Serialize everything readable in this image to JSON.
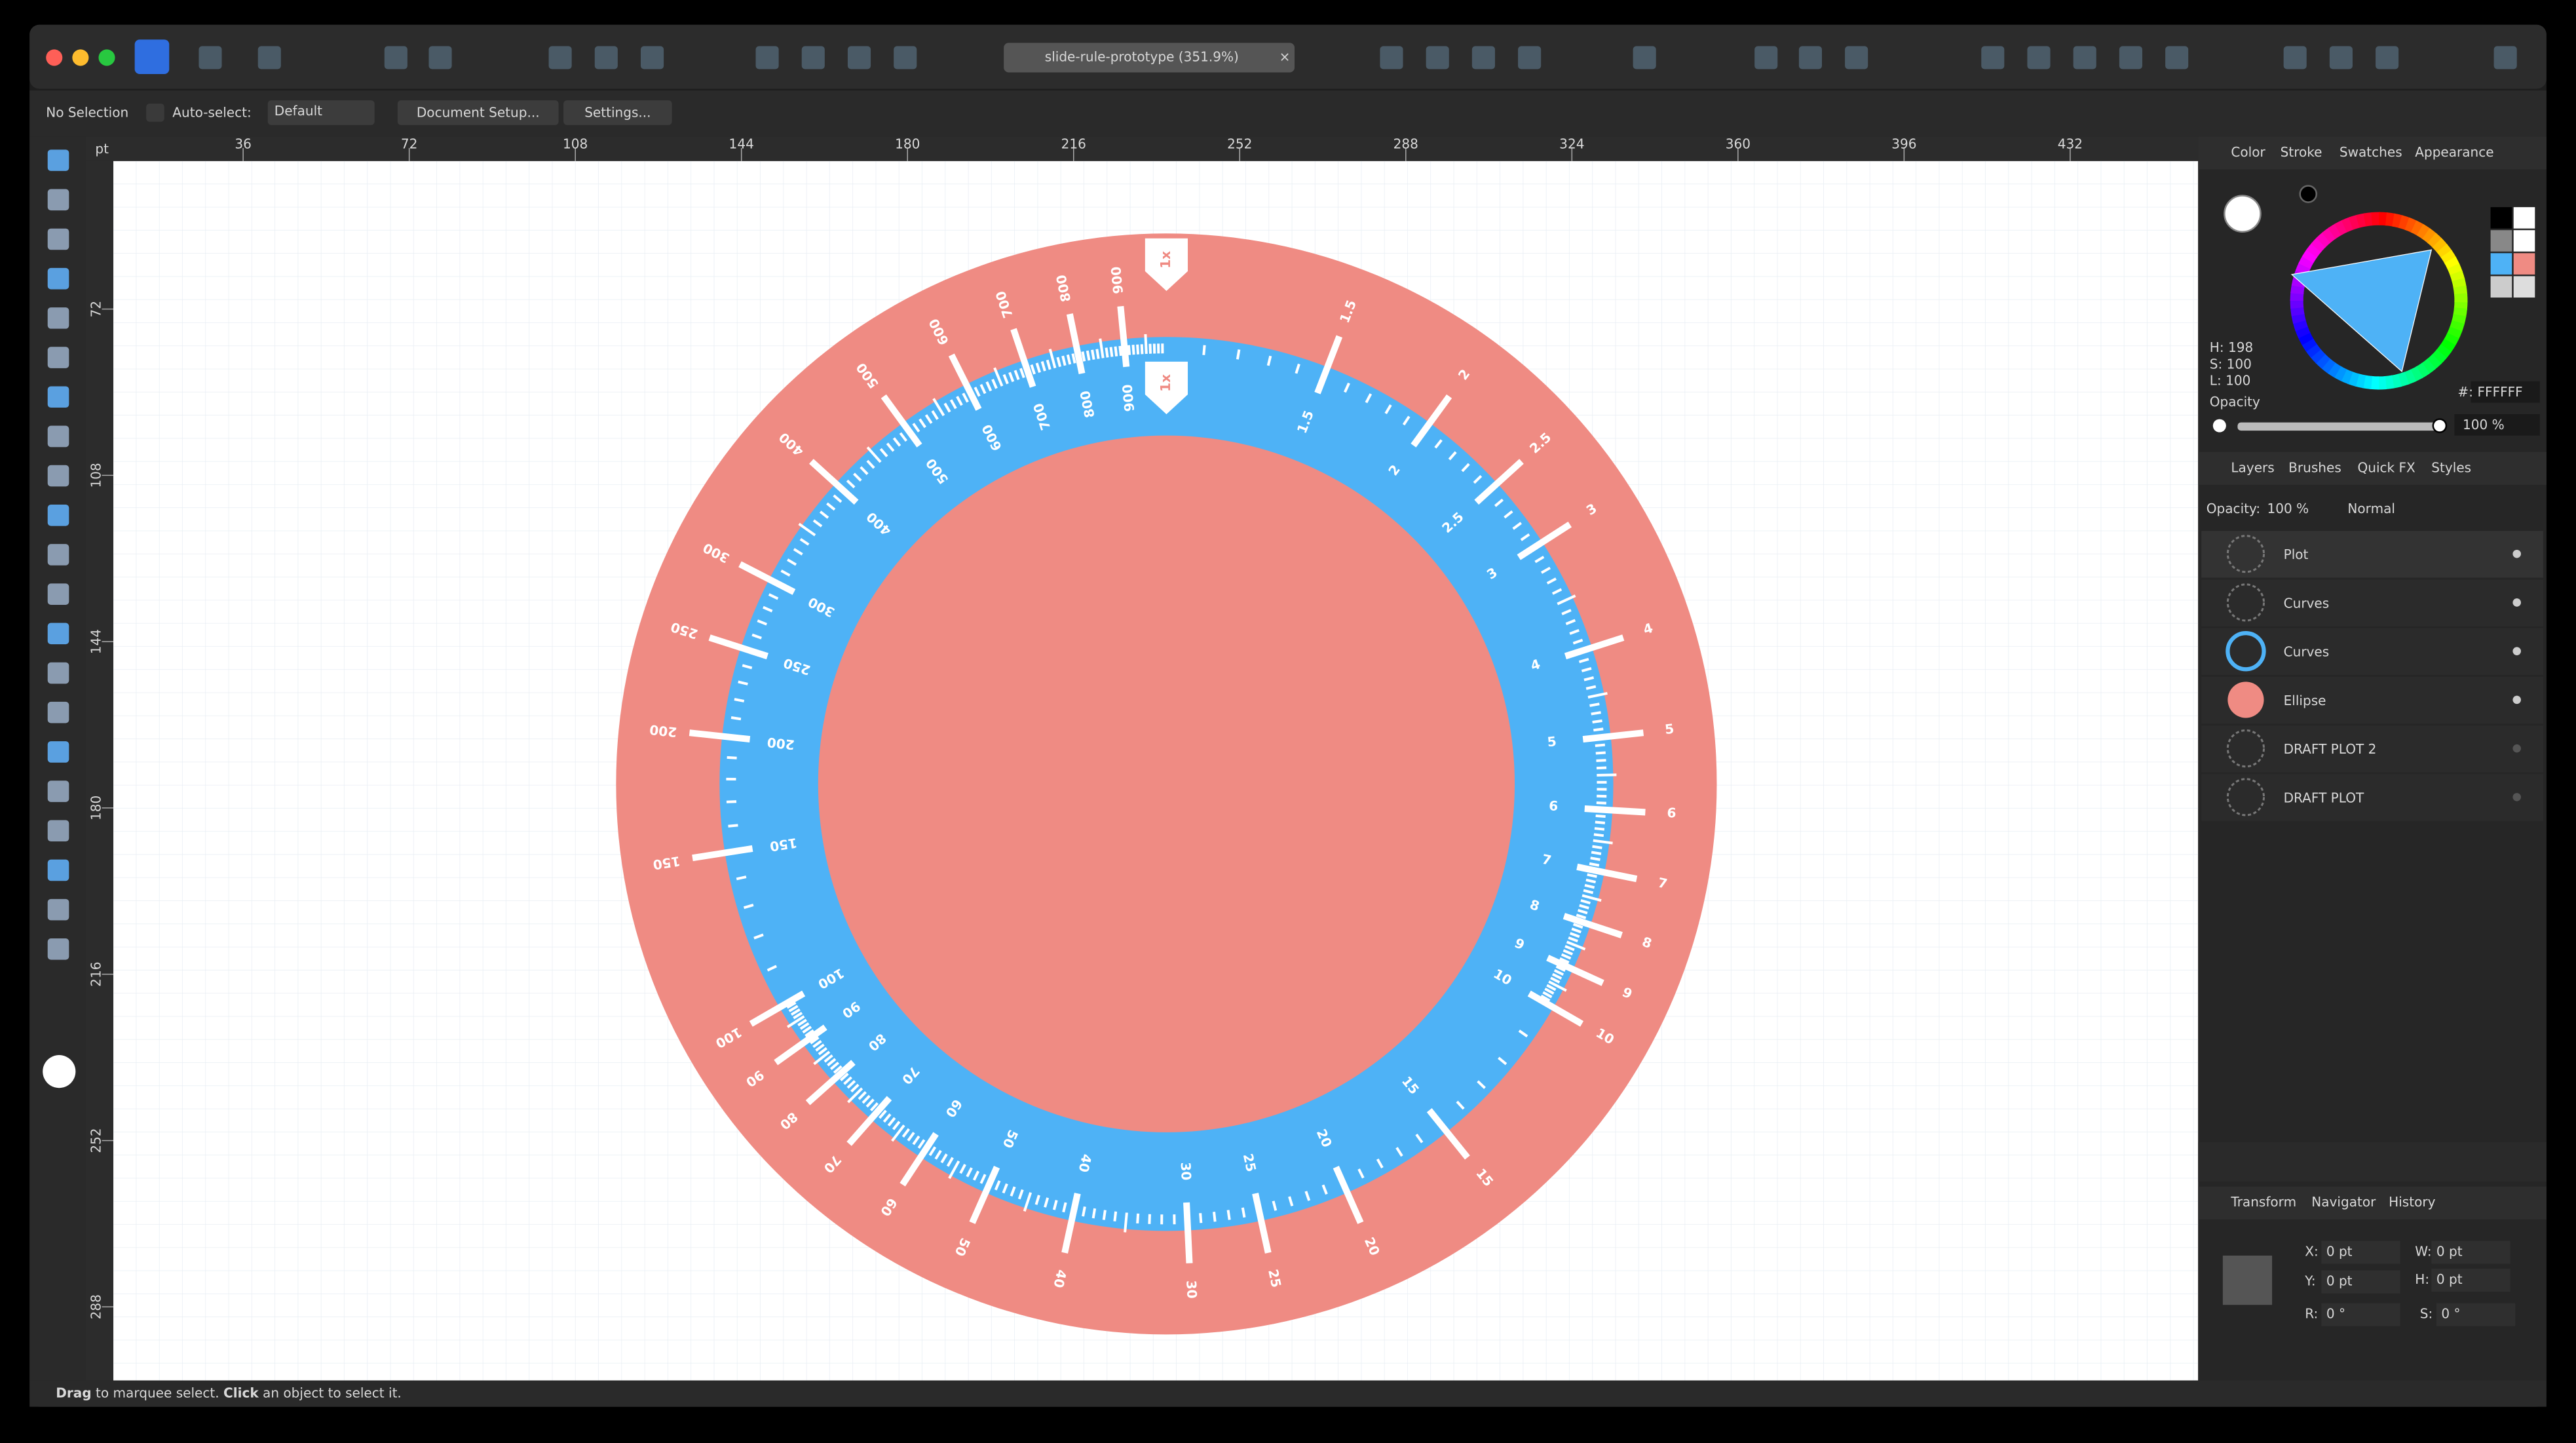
{
  "window": {
    "title": "slide-rule-prototype (351.9%)"
  },
  "context": {
    "selection": "No Selection",
    "auto_select": "Auto-select:",
    "mode": "Default",
    "document_setup": "Document Setup...",
    "settings": "Settings..."
  },
  "ruler": {
    "unit": "pt",
    "top": [
      36,
      72,
      108,
      144,
      180,
      216,
      252,
      288,
      324,
      360,
      396,
      432
    ],
    "left": [
      72,
      108,
      144,
      180,
      216,
      252,
      288
    ]
  },
  "dial": {
    "scale": [
      {
        "value": 1,
        "label": "1x"
      },
      1.5,
      2,
      2.5,
      3,
      4,
      5,
      6,
      7,
      8,
      9,
      10,
      15,
      20,
      25,
      30,
      40,
      50,
      60,
      70,
      80,
      90,
      100,
      150,
      200,
      250,
      300,
      400,
      500,
      600,
      700,
      800,
      900
    ]
  },
  "color_panel": {
    "tabs": [
      "Color",
      "Stroke",
      "Swatches",
      "Appearance"
    ],
    "h": "H: 198",
    "s": "S: 100",
    "l": "L: 100",
    "opacity_label": "Opacity",
    "opacity": "100 %",
    "hex_label": "#:",
    "hex": "FFFFFF"
  },
  "layers_panel": {
    "tabs": [
      "Layers",
      "Brushes",
      "Quick FX",
      "Styles"
    ],
    "opacity_label": "Opacity:",
    "opacity": "100 %",
    "blend": "Normal",
    "layers": [
      "Plot",
      "Curves",
      "Curves",
      "Ellipse",
      "DRAFT PLOT 2",
      "DRAFT PLOT"
    ]
  },
  "transform_panel": {
    "tabs": [
      "Transform",
      "Navigator",
      "History"
    ],
    "fields": [
      {
        "label": "X:",
        "value": "0 pt"
      },
      {
        "label": "Y:",
        "value": "0 pt"
      },
      {
        "label": "W:",
        "value": "0 pt"
      },
      {
        "label": "H:",
        "value": "0 pt"
      },
      {
        "label": "R:",
        "value": "0 °"
      },
      {
        "label": "S:",
        "value": "0 °"
      }
    ]
  },
  "status": {
    "drag": "Drag",
    "t1": " to marquee select. ",
    "click": "Click",
    "t2": " an object to select it."
  }
}
